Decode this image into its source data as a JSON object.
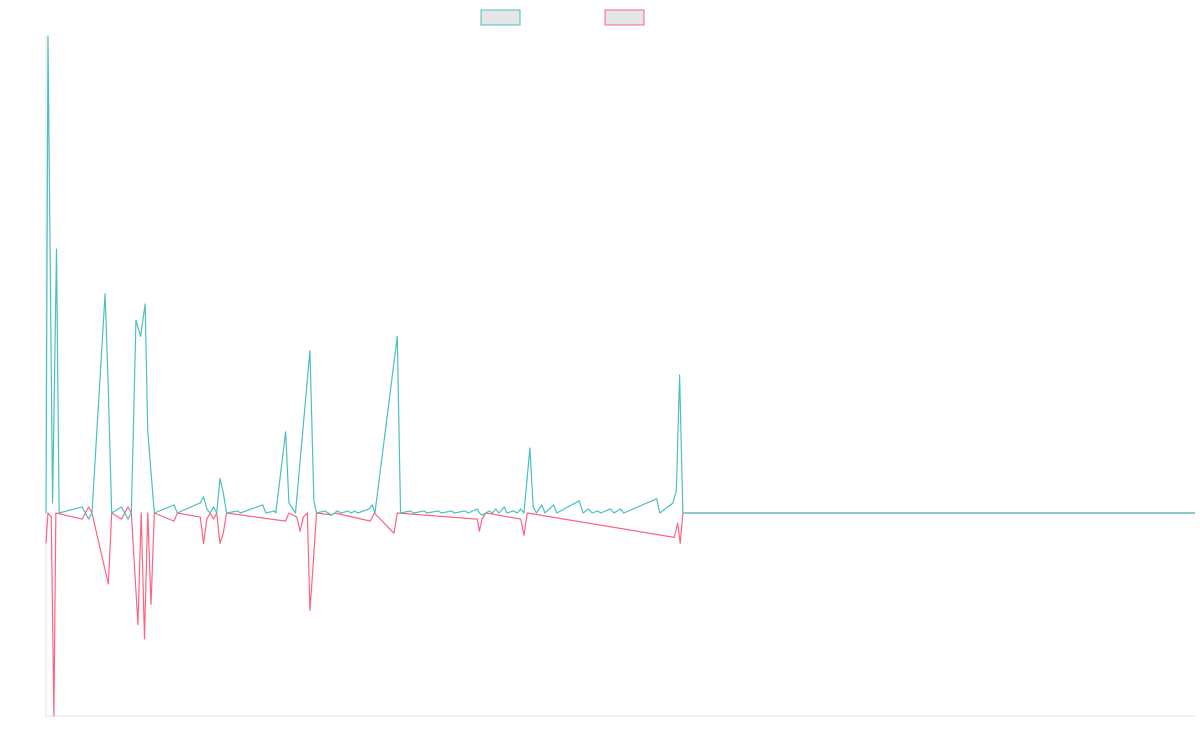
{
  "colors": {
    "series_a": "#4bc0c0",
    "series_b": "#ff6384",
    "legend_fill": "#e6e6e6",
    "axis": "#e5e5e5"
  },
  "legend": {
    "position": "top-center",
    "items": [
      {
        "label": "",
        "color_key": "series_a"
      },
      {
        "label": "",
        "color_key": "series_b"
      }
    ]
  },
  "chart_data": {
    "type": "line",
    "title": "",
    "xlabel": "",
    "ylabel": "",
    "grid": false,
    "x_count": 176,
    "ylim": [
      -100,
      235
    ],
    "series": [
      {
        "color_key": "series_a",
        "points": [
          [
            0,
            0
          ],
          [
            0.3,
            235
          ],
          [
            1,
            5
          ],
          [
            1.6,
            130
          ],
          [
            2,
            0
          ],
          [
            5.5,
            3
          ],
          [
            6,
            0
          ],
          [
            6.5,
            -3
          ],
          [
            7,
            0
          ],
          [
            9,
            108
          ],
          [
            9.5,
            60
          ],
          [
            10,
            0
          ],
          [
            11.5,
            3
          ],
          [
            12,
            0
          ],
          [
            12.5,
            -3
          ],
          [
            13,
            0
          ],
          [
            13.7,
            95
          ],
          [
            14.4,
            87
          ],
          [
            15.1,
            103
          ],
          [
            15.5,
            40
          ],
          [
            16.5,
            0
          ],
          [
            19.5,
            4
          ],
          [
            20,
            0
          ],
          [
            23.5,
            5
          ],
          [
            24,
            8
          ],
          [
            24.5,
            2
          ],
          [
            25,
            0
          ],
          [
            25.5,
            3
          ],
          [
            26,
            0
          ],
          [
            26.5,
            17
          ],
          [
            27,
            10
          ],
          [
            27.5,
            0
          ],
          [
            29.2,
            1
          ],
          [
            29.6,
            0
          ],
          [
            33,
            4
          ],
          [
            33.5,
            0
          ],
          [
            34.8,
            1
          ],
          [
            35,
            0
          ],
          [
            36.5,
            40
          ],
          [
            37,
            5
          ],
          [
            38,
            0
          ],
          [
            40.2,
            80
          ],
          [
            40.8,
            6
          ],
          [
            41.2,
            0
          ],
          [
            42.5,
            1
          ],
          [
            43,
            0
          ],
          [
            43.5,
            -1
          ],
          [
            44,
            0
          ],
          [
            44.3,
            1
          ],
          [
            45,
            0
          ],
          [
            46,
            1
          ],
          [
            46.5,
            0
          ],
          [
            47,
            1
          ],
          [
            47.5,
            0
          ],
          [
            49.2,
            2
          ],
          [
            49.7,
            4
          ],
          [
            50.1,
            0
          ],
          [
            53.5,
            87
          ],
          [
            54,
            0
          ],
          [
            55.5,
            1
          ],
          [
            56,
            0
          ],
          [
            57.6,
            1
          ],
          [
            58,
            0
          ],
          [
            59.8,
            1
          ],
          [
            60.2,
            0
          ],
          [
            61.8,
            1
          ],
          [
            62.2,
            0
          ],
          [
            63.8,
            1
          ],
          [
            64.3,
            0
          ],
          [
            65.7,
            2
          ],
          [
            66,
            0
          ],
          [
            66.4,
            -1
          ],
          [
            67,
            0
          ],
          [
            67.5,
            1
          ],
          [
            68,
            0
          ],
          [
            68.5,
            2
          ],
          [
            69,
            0
          ],
          [
            69.8,
            3
          ],
          [
            70.2,
            0
          ],
          [
            71.2,
            1
          ],
          [
            71.8,
            0
          ],
          [
            72.3,
            2
          ],
          [
            72.8,
            0
          ],
          [
            73.7,
            32
          ],
          [
            74.2,
            3
          ],
          [
            74.7,
            0
          ],
          [
            75.5,
            4
          ],
          [
            76,
            0
          ],
          [
            77.3,
            4
          ],
          [
            77.8,
            0
          ],
          [
            81.2,
            6
          ],
          [
            81.8,
            0
          ],
          [
            82.6,
            2
          ],
          [
            83.2,
            0
          ],
          [
            84,
            1
          ],
          [
            84.5,
            0
          ],
          [
            86,
            2
          ],
          [
            86.5,
            0
          ],
          [
            87.5,
            2
          ],
          [
            88,
            0
          ],
          [
            93,
            7
          ],
          [
            93.5,
            0
          ],
          [
            95.5,
            5
          ],
          [
            96,
            11
          ],
          [
            96.5,
            68
          ],
          [
            97,
            0
          ],
          [
            175,
            0
          ]
        ]
      },
      {
        "color_key": "series_b",
        "points": [
          [
            0,
            -15
          ],
          [
            0.3,
            0
          ],
          [
            0.8,
            -2
          ],
          [
            1.2,
            -100
          ],
          [
            1.5,
            0
          ],
          [
            5.5,
            -3
          ],
          [
            6,
            0
          ],
          [
            6.5,
            3
          ],
          [
            7,
            0
          ],
          [
            9,
            -28
          ],
          [
            9.5,
            -35
          ],
          [
            10,
            0
          ],
          [
            11.5,
            -3
          ],
          [
            12,
            0
          ],
          [
            12.5,
            3
          ],
          [
            13,
            0
          ],
          [
            14,
            -55
          ],
          [
            14.5,
            0
          ],
          [
            15,
            -62
          ],
          [
            15.5,
            0
          ],
          [
            16,
            -45
          ],
          [
            16.5,
            0
          ],
          [
            19.5,
            -4
          ],
          [
            20,
            0
          ],
          [
            23.5,
            -2
          ],
          [
            24,
            -15
          ],
          [
            24.5,
            -3
          ],
          [
            25,
            0
          ],
          [
            25.5,
            -3
          ],
          [
            26,
            0
          ],
          [
            26.5,
            -15
          ],
          [
            27,
            -10
          ],
          [
            27.5,
            0
          ],
          [
            36.5,
            -4
          ],
          [
            37,
            0
          ],
          [
            38.2,
            -2
          ],
          [
            38.7,
            -9
          ],
          [
            39.2,
            -2
          ],
          [
            39.8,
            0
          ],
          [
            40.2,
            -48
          ],
          [
            40.7,
            -25
          ],
          [
            41.2,
            0
          ],
          [
            43.5,
            -1
          ],
          [
            44,
            0
          ],
          [
            49.4,
            -4
          ],
          [
            50,
            0
          ],
          [
            53,
            -10
          ],
          [
            53.5,
            0
          ],
          [
            65.7,
            -3
          ],
          [
            66,
            -9
          ],
          [
            66.4,
            -3
          ],
          [
            67,
            0
          ],
          [
            72.3,
            -3
          ],
          [
            72.8,
            -11
          ],
          [
            73.3,
            0
          ],
          [
            95.7,
            -12
          ],
          [
            96.2,
            -5
          ],
          [
            96.6,
            -15
          ],
          [
            97,
            0
          ],
          [
            175,
            0
          ]
        ]
      }
    ]
  }
}
